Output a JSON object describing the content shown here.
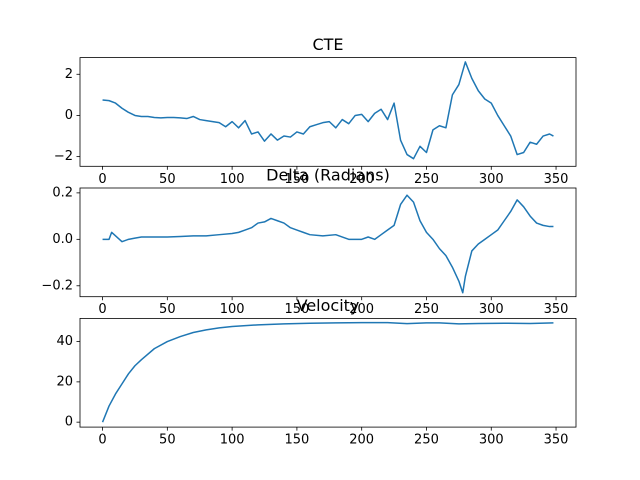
{
  "chart_data": [
    {
      "type": "line",
      "title": "CTE",
      "x": [
        0,
        5,
        10,
        15,
        20,
        25,
        30,
        35,
        40,
        45,
        50,
        55,
        60,
        65,
        70,
        75,
        80,
        85,
        90,
        95,
        100,
        105,
        110,
        115,
        120,
        125,
        130,
        135,
        140,
        145,
        150,
        155,
        160,
        165,
        170,
        175,
        180,
        185,
        190,
        195,
        200,
        205,
        210,
        215,
        220,
        225,
        230,
        235,
        240,
        245,
        250,
        255,
        260,
        265,
        270,
        275,
        280,
        285,
        290,
        295,
        300,
        305,
        310,
        315,
        320,
        325,
        330,
        335,
        340,
        345,
        348
      ],
      "series": [
        {
          "color": "#1f77b4",
          "values": [
            0.75,
            0.72,
            0.6,
            0.35,
            0.15,
            0.0,
            -0.05,
            -0.05,
            -0.1,
            -0.12,
            -0.1,
            -0.1,
            -0.12,
            -0.15,
            -0.05,
            -0.2,
            -0.25,
            -0.3,
            -0.35,
            -0.55,
            -0.3,
            -0.6,
            -0.25,
            -0.9,
            -0.8,
            -1.25,
            -0.9,
            -1.2,
            -1.0,
            -1.05,
            -0.8,
            -0.9,
            -0.55,
            -0.45,
            -0.35,
            -0.3,
            -0.6,
            -0.2,
            -0.4,
            0.0,
            0.05,
            -0.3,
            0.1,
            0.3,
            -0.2,
            0.6,
            -1.2,
            -1.9,
            -2.1,
            -1.5,
            -1.8,
            -0.7,
            -0.5,
            -0.6,
            1.0,
            1.5,
            2.6,
            1.8,
            1.2,
            0.8,
            0.6,
            0.0,
            -0.5,
            -1.0,
            -1.9,
            -1.8,
            -1.3,
            -1.4,
            -1.0,
            -0.9,
            -1.0
          ]
        }
      ],
      "xlim": [
        -17.4,
        365.4
      ],
      "xticks": [
        0,
        50,
        100,
        150,
        200,
        250,
        300,
        350
      ],
      "ylim": [
        -2.47,
        2.81
      ],
      "yticks": [
        {
          "value": -2,
          "label": "−2"
        },
        0,
        2
      ]
    },
    {
      "type": "line",
      "title": "Delta (Radians)",
      "x": [
        0,
        5,
        7,
        10,
        15,
        20,
        25,
        30,
        40,
        50,
        60,
        70,
        80,
        90,
        100,
        105,
        110,
        115,
        120,
        125,
        130,
        135,
        140,
        145,
        150,
        155,
        160,
        170,
        180,
        190,
        200,
        205,
        210,
        215,
        220,
        225,
        230,
        235,
        240,
        245,
        250,
        255,
        260,
        265,
        270,
        275,
        278,
        280,
        285,
        290,
        295,
        300,
        305,
        310,
        315,
        320,
        325,
        330,
        335,
        340,
        345,
        348
      ],
      "series": [
        {
          "color": "#1f77b4",
          "values": [
            0,
            0.0,
            0.03,
            0.015,
            -0.01,
            0.0,
            0.005,
            0.01,
            0.01,
            0.01,
            0.012,
            0.015,
            0.015,
            0.02,
            0.025,
            0.03,
            0.04,
            0.05,
            0.07,
            0.075,
            0.09,
            0.08,
            0.07,
            0.05,
            0.04,
            0.03,
            0.02,
            0.015,
            0.02,
            0.0,
            0.0,
            0.01,
            0.0,
            0.02,
            0.04,
            0.06,
            0.15,
            0.19,
            0.16,
            0.08,
            0.03,
            0.0,
            -0.04,
            -0.07,
            -0.12,
            -0.18,
            -0.23,
            -0.16,
            -0.05,
            -0.02,
            0.0,
            0.02,
            0.04,
            0.08,
            0.12,
            0.17,
            0.14,
            0.1,
            0.07,
            0.06,
            0.055,
            0.055
          ]
        }
      ],
      "xlim": [
        -17.4,
        365.4
      ],
      "xticks": [
        0,
        50,
        100,
        150,
        200,
        250,
        300,
        350
      ],
      "ylim": [
        -0.247,
        0.221
      ],
      "yticks": [
        {
          "value": -0.2,
          "label": "−0.2"
        },
        {
          "value": 0,
          "label": "0.0"
        },
        0.2
      ]
    },
    {
      "type": "line",
      "title": "Velocity",
      "x": [
        0,
        5,
        10,
        15,
        20,
        25,
        30,
        40,
        50,
        60,
        70,
        80,
        90,
        100,
        120,
        140,
        160,
        180,
        200,
        220,
        235,
        250,
        260,
        275,
        290,
        310,
        330,
        348
      ],
      "series": [
        {
          "color": "#1f77b4",
          "values": [
            0,
            8,
            14,
            19,
            24,
            28,
            31,
            36.5,
            40,
            42.5,
            44.5,
            45.8,
            46.8,
            47.5,
            48.3,
            48.8,
            49.1,
            49.3,
            49.4,
            49.4,
            48.9,
            49.3,
            49.3,
            48.8,
            49.0,
            49.1,
            49.0,
            49.3
          ]
        }
      ],
      "xlim": [
        -17.4,
        365.4
      ],
      "xticks": [
        0,
        50,
        100,
        150,
        200,
        250,
        300,
        350
      ],
      "ylim": [
        -2.45,
        51.5
      ],
      "yticks": [
        0,
        20,
        40
      ]
    }
  ]
}
